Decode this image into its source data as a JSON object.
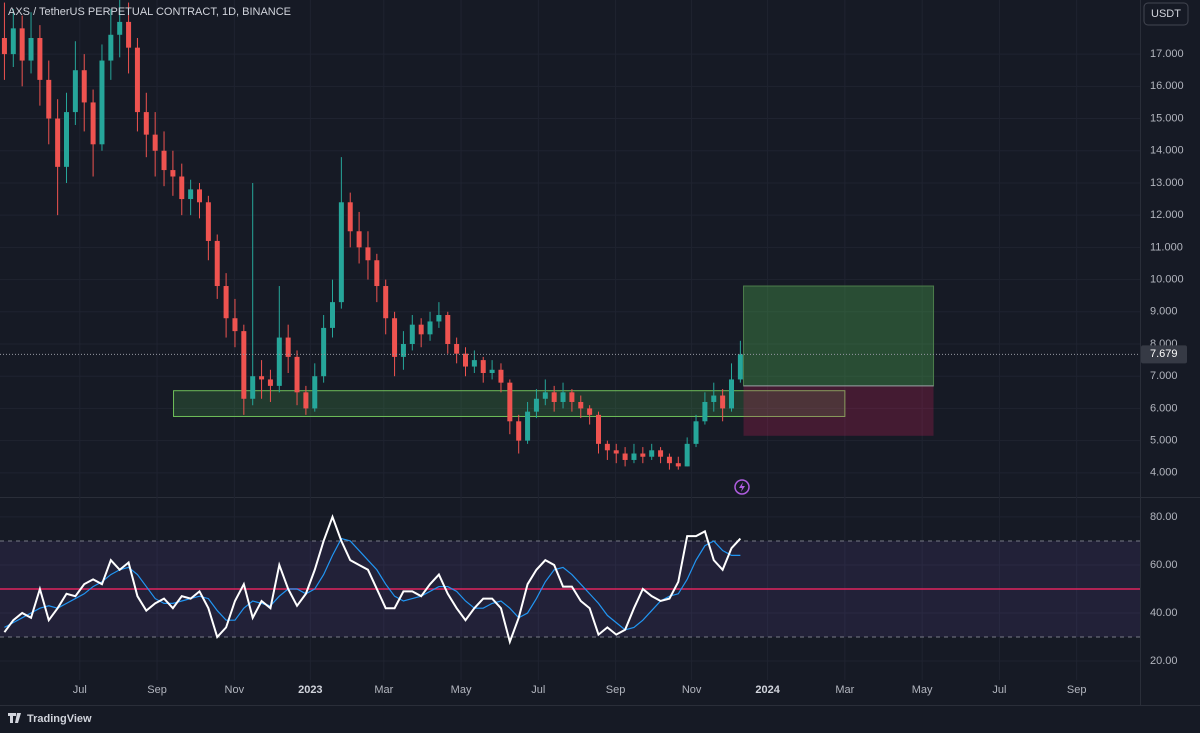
{
  "chart_data": [
    {
      "type": "candlestick",
      "title": "AXS / TetherUS PERPETUAL CONTRACT, 1D, BINANCE",
      "x": [
        3.5,
        10.5,
        17.5,
        24.5,
        31.5,
        38.5,
        45.5,
        52.5,
        59.5,
        66.5,
        73.5,
        80.5,
        87.5,
        94.5,
        101.5,
        108.5,
        115.5,
        122.5,
        129.5,
        136.5,
        143.5,
        150.5,
        157.5,
        164.5,
        171.5,
        178.5,
        185.5,
        192.5,
        199.5,
        206.5,
        213.5,
        220.5,
        227.5,
        234.5,
        241.5,
        248.5,
        255.5,
        262.5,
        269.5,
        276.5,
        283.5,
        290.5,
        297.5,
        304.5,
        311.5,
        318.5,
        325.5,
        332.5,
        339.5,
        346.5,
        353.5,
        360.5,
        367.5,
        374.5,
        381.5,
        388.5,
        395.5,
        402.5,
        409.5,
        416.5,
        423.5,
        430.5,
        437.5,
        444.5,
        451.5,
        458.5,
        465.5,
        472.5,
        479.5,
        486.5,
        493.5,
        500.5,
        507.5,
        514.5,
        521.5,
        528.5,
        535.5,
        542.5,
        549.5,
        556.5,
        563.5,
        570.5,
        577.5,
        584.5
      ],
      "open": [
        17.5,
        17.0,
        17.8,
        16.8,
        17.5,
        16.2,
        15.0,
        13.5,
        15.2,
        16.5,
        15.5,
        14.2,
        16.8,
        17.6,
        18.0,
        17.2,
        15.2,
        14.5,
        14.0,
        13.4,
        13.2,
        12.5,
        12.8,
        12.4,
        11.2,
        9.8,
        8.8,
        8.4,
        6.3,
        7.0,
        6.9,
        6.7,
        8.2,
        7.6,
        6.5,
        6.0,
        7.0,
        8.5,
        9.3,
        12.4,
        11.5,
        11.0,
        10.6,
        9.8,
        8.8,
        7.6,
        8.0,
        8.6,
        8.3,
        8.7,
        8.9,
        8.0,
        7.7,
        7.3,
        7.5,
        7.1,
        7.2,
        6.8,
        5.6,
        5.0,
        5.9,
        6.3,
        6.5,
        6.2,
        6.5,
        6.2,
        6.0,
        5.8,
        4.9,
        4.7,
        4.6,
        4.4,
        4.6,
        4.5,
        4.7,
        4.5,
        4.3,
        4.2,
        4.9,
        5.6,
        6.2,
        6.4,
        6.0,
        6.9
      ],
      "high": [
        18.6,
        18.4,
        18.2,
        18.3,
        17.9,
        16.8,
        15.6,
        15.8,
        17.4,
        17.0,
        15.9,
        17.3,
        18.4,
        18.7,
        18.6,
        17.5,
        15.8,
        15.2,
        14.6,
        14.0,
        13.6,
        13.1,
        13.0,
        12.6,
        11.4,
        10.2,
        9.4,
        8.6,
        13.0,
        7.5,
        7.2,
        9.8,
        8.6,
        7.8,
        6.7,
        7.4,
        8.9,
        10.0,
        13.8,
        12.7,
        12.1,
        11.5,
        10.8,
        10.0,
        9.0,
        8.4,
        8.9,
        8.8,
        9.0,
        9.3,
        9.0,
        8.2,
        7.9,
        7.8,
        7.6,
        7.5,
        7.4,
        6.9,
        5.8,
        6.2,
        6.6,
        6.9,
        6.7,
        6.8,
        6.6,
        6.4,
        6.1,
        5.9,
        5.0,
        4.9,
        4.8,
        4.9,
        4.8,
        4.9,
        4.8,
        4.6,
        4.5,
        5.1,
        5.8,
        6.5,
        6.8,
        6.6,
        7.4,
        8.1
      ],
      "low": [
        16.2,
        16.6,
        16.0,
        16.4,
        15.4,
        14.2,
        12.0,
        13.0,
        14.8,
        14.6,
        13.2,
        14.0,
        16.2,
        16.9,
        16.4,
        14.6,
        13.8,
        13.2,
        12.9,
        12.6,
        12.0,
        12.0,
        11.9,
        10.6,
        9.4,
        8.2,
        7.9,
        5.8,
        6.1,
        6.3,
        6.2,
        6.5,
        7.1,
        6.1,
        5.8,
        5.9,
        6.8,
        8.2,
        9.1,
        11.0,
        10.5,
        10.0,
        9.3,
        8.3,
        7.0,
        7.2,
        7.8,
        7.9,
        8.1,
        8.5,
        7.7,
        7.4,
        7.0,
        7.1,
        6.8,
        6.9,
        6.5,
        5.2,
        4.6,
        4.9,
        5.7,
        6.1,
        5.9,
        6.0,
        5.9,
        5.7,
        5.5,
        4.6,
        4.4,
        4.3,
        4.2,
        4.3,
        4.3,
        4.4,
        4.3,
        4.1,
        4.1,
        4.2,
        4.8,
        5.5,
        5.9,
        5.6,
        5.9,
        6.8
      ],
      "close": [
        17.0,
        17.8,
        16.8,
        17.5,
        16.2,
        15.0,
        13.5,
        15.2,
        16.5,
        15.5,
        14.2,
        16.8,
        17.6,
        18.0,
        17.2,
        15.2,
        14.5,
        14.0,
        13.4,
        13.2,
        12.5,
        12.8,
        12.4,
        11.2,
        9.8,
        8.8,
        8.4,
        6.3,
        7.0,
        6.9,
        6.7,
        8.2,
        7.6,
        6.5,
        6.0,
        7.0,
        8.5,
        9.3,
        12.4,
        11.5,
        11.0,
        10.6,
        9.8,
        8.8,
        7.6,
        8.0,
        8.6,
        8.3,
        8.7,
        8.9,
        8.0,
        7.7,
        7.3,
        7.5,
        7.1,
        7.2,
        6.8,
        5.6,
        5.0,
        5.9,
        6.3,
        6.5,
        6.2,
        6.5,
        6.2,
        6.0,
        5.8,
        4.9,
        4.7,
        4.6,
        4.4,
        4.6,
        4.5,
        4.7,
        4.5,
        4.3,
        4.2,
        4.9,
        5.6,
        6.2,
        6.4,
        6.0,
        6.9,
        7.68
      ],
      "up_color": "#26a69a",
      "down_color": "#ef5350",
      "xlim": [
        0,
        900
      ],
      "xticks": [
        {
          "value": 63,
          "label": "Jul"
        },
        {
          "value": 124,
          "label": "Sep"
        },
        {
          "value": 185,
          "label": "Nov"
        },
        {
          "value": 245,
          "label": "2023"
        },
        {
          "value": 303,
          "label": "Mar"
        },
        {
          "value": 364,
          "label": "May"
        },
        {
          "value": 425,
          "label": "Jul"
        },
        {
          "value": 486,
          "label": "Sep"
        },
        {
          "value": 546,
          "label": "Nov"
        },
        {
          "value": 606,
          "label": "2024"
        },
        {
          "value": 667,
          "label": "Mar"
        },
        {
          "value": 728,
          "label": "May"
        },
        {
          "value": 789,
          "label": "Jul"
        },
        {
          "value": 850,
          "label": "Sep"
        }
      ],
      "ylim": [
        3.25,
        18.68
      ],
      "yticks": [
        {
          "value": 4,
          "label": "4.000"
        },
        {
          "value": 5,
          "label": "5.000"
        },
        {
          "value": 6,
          "label": "6.000"
        },
        {
          "value": 7,
          "label": "7.000"
        },
        {
          "value": 8,
          "label": "8.000"
        },
        {
          "value": 9,
          "label": "9.000"
        },
        {
          "value": 10,
          "label": "10.000"
        },
        {
          "value": 11,
          "label": "11.000"
        },
        {
          "value": 12,
          "label": "12.000"
        },
        {
          "value": 13,
          "label": "13.000"
        },
        {
          "value": 14,
          "label": "14.000"
        },
        {
          "value": 15,
          "label": "15.000"
        },
        {
          "value": 16,
          "label": "16.000"
        },
        {
          "value": 17,
          "label": "17.000"
        }
      ],
      "grid": true,
      "last_price": {
        "value": 7.679,
        "label": "7.679"
      },
      "zone": {
        "x": [
          137,
          667
        ],
        "y": [
          5.75,
          6.55
        ]
      },
      "position": {
        "x": [
          587,
          737
        ],
        "target": 9.8,
        "entry": 6.7,
        "stop": 5.15
      }
    },
    {
      "type": "line",
      "series": [
        {
          "color": "#ffffff",
          "values": [
            32,
            37,
            40,
            38,
            50,
            37,
            42,
            48,
            47,
            52,
            54,
            52,
            62,
            58,
            61,
            47,
            41,
            44,
            46,
            42,
            47,
            46,
            49,
            42,
            30,
            34,
            45,
            52,
            38,
            45,
            42,
            60,
            50,
            43,
            48,
            58,
            70,
            80,
            70,
            62,
            60,
            58,
            50,
            42,
            42,
            49,
            49,
            47,
            52,
            56,
            48,
            42,
            37,
            42,
            46,
            46,
            42,
            28,
            38,
            52,
            58,
            62,
            60,
            51,
            51,
            45,
            42,
            31,
            34,
            31,
            33,
            42,
            50,
            47,
            45,
            46,
            53,
            72,
            72,
            74,
            62,
            58,
            67,
            71
          ]
        },
        {
          "color": "#2196f3",
          "values": [
            34,
            36,
            38,
            40,
            42,
            43,
            42,
            44,
            46,
            48,
            51,
            53,
            56,
            58,
            59,
            56,
            51,
            46,
            44,
            44,
            45,
            46,
            47,
            46,
            41,
            37,
            37,
            42,
            45,
            44,
            43,
            47,
            50,
            50,
            48,
            50,
            56,
            64,
            71,
            70,
            66,
            62,
            58,
            52,
            47,
            45,
            46,
            47,
            49,
            51,
            51,
            49,
            45,
            42,
            42,
            44,
            45,
            42,
            38,
            40,
            46,
            53,
            58,
            59,
            56,
            52,
            48,
            44,
            39,
            36,
            33,
            34,
            37,
            41,
            45,
            47,
            48,
            54,
            62,
            68,
            70,
            66,
            64,
            64
          ]
        }
      ],
      "ylim": [
        12.1,
        88.3
      ],
      "yticks": [
        {
          "value": 20,
          "label": "20.00"
        },
        {
          "value": 40,
          "label": "40.00"
        },
        {
          "value": 60,
          "label": "60.00"
        },
        {
          "value": 80,
          "label": "80.00"
        }
      ],
      "bands": {
        "upper": 70,
        "middle": 50,
        "lower": 30
      }
    }
  ],
  "currency": "USDT",
  "branding": "TradingView"
}
